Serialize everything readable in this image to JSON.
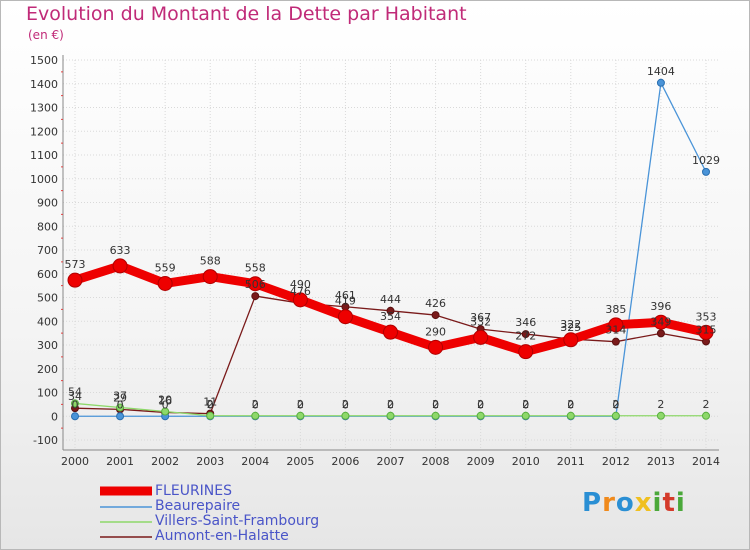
{
  "title": "Evolution du Montant de la Dette par Habitant",
  "subtitle": "(en €)",
  "logo": {
    "letters": [
      "P",
      "r",
      "o",
      "x",
      "i",
      "t",
      "i"
    ],
    "colors": [
      "#2a8fd4",
      "#f08a1c",
      "#2a8fd4",
      "#f0c020",
      "#4aa83a",
      "#d43a2a",
      "#4aa83a"
    ]
  },
  "chart_data": {
    "type": "line",
    "title": "Evolution du Montant de la Dette par Habitant",
    "ylabel": "(en €)",
    "xlabel": "",
    "x": [
      "2000",
      "2001",
      "2002",
      "2003",
      "2004",
      "2005",
      "2006",
      "2007",
      "2008",
      "2009",
      "2010",
      "2011",
      "2012",
      "2013",
      "2014"
    ],
    "ylim": [
      -100,
      1500
    ],
    "yticks": [
      "-100",
      "0",
      "100",
      "200",
      "300",
      "400",
      "500",
      "600",
      "700",
      "800",
      "900",
      "1000",
      "1100",
      "1200",
      "1300",
      "1400",
      "1500"
    ],
    "grid": true,
    "legend_position": "bottom-left",
    "series": [
      {
        "name": "FLEURINES",
        "color": "#ee0000",
        "values": [
          573,
          633,
          559,
          588,
          558,
          490,
          419,
          354,
          290,
          332,
          272,
          322,
          385,
          396,
          353
        ],
        "labels": [
          "573",
          "633",
          "559",
          "588",
          "558",
          "490",
          "419",
          "354",
          "290",
          "332",
          "272",
          "322",
          "385",
          "396",
          "353"
        ]
      },
      {
        "name": "Beaurepaire",
        "color": "#4a94d8",
        "values": [
          0,
          0,
          0,
          0,
          0,
          0,
          0,
          0,
          0,
          0,
          0,
          0,
          0,
          1404,
          1029
        ],
        "labels": [
          "0",
          "0",
          "0",
          "0",
          "0",
          "0",
          "0",
          "0",
          "0",
          "0",
          "0",
          "0",
          "0",
          "1404",
          "1029"
        ]
      },
      {
        "name": "Villers-Saint-Frambourg",
        "color": "#8ed86a",
        "values": [
          54,
          37,
          20,
          2,
          2,
          2,
          2,
          2,
          2,
          2,
          2,
          2,
          2,
          2,
          2
        ],
        "labels": [
          "54",
          "37",
          "20",
          "2",
          "2",
          "2",
          "2",
          "2",
          "2",
          "2",
          "2",
          "2",
          "2",
          "2",
          "2"
        ]
      },
      {
        "name": "Aumont-en-Halatte",
        "color": "#7a1a1a",
        "values": [
          34,
          29,
          16,
          11,
          506,
          476,
          461,
          444,
          426,
          367,
          346,
          325,
          314,
          349,
          315
        ],
        "labels": [
          "34",
          "29",
          "16",
          "11",
          "506",
          "476",
          "461",
          "444",
          "426",
          "367",
          "346",
          "325",
          "314",
          "349",
          "315"
        ]
      }
    ]
  }
}
